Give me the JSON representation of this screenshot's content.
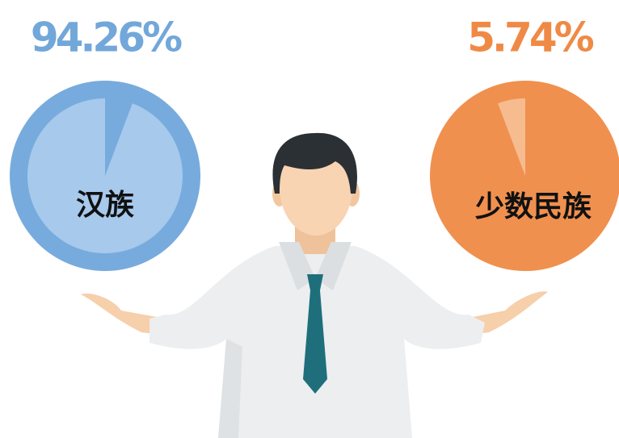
{
  "chart_data": {
    "type": "pie",
    "categories": [
      "汉族",
      "少数民族"
    ],
    "values": [
      94.26,
      5.74
    ],
    "value_labels": [
      "94.26%",
      "5.74%"
    ],
    "series": [
      {
        "name": "汉族",
        "color": "#a6c9ec"
      },
      {
        "name": "少数民族",
        "color": "#f6bc90"
      }
    ]
  }
}
